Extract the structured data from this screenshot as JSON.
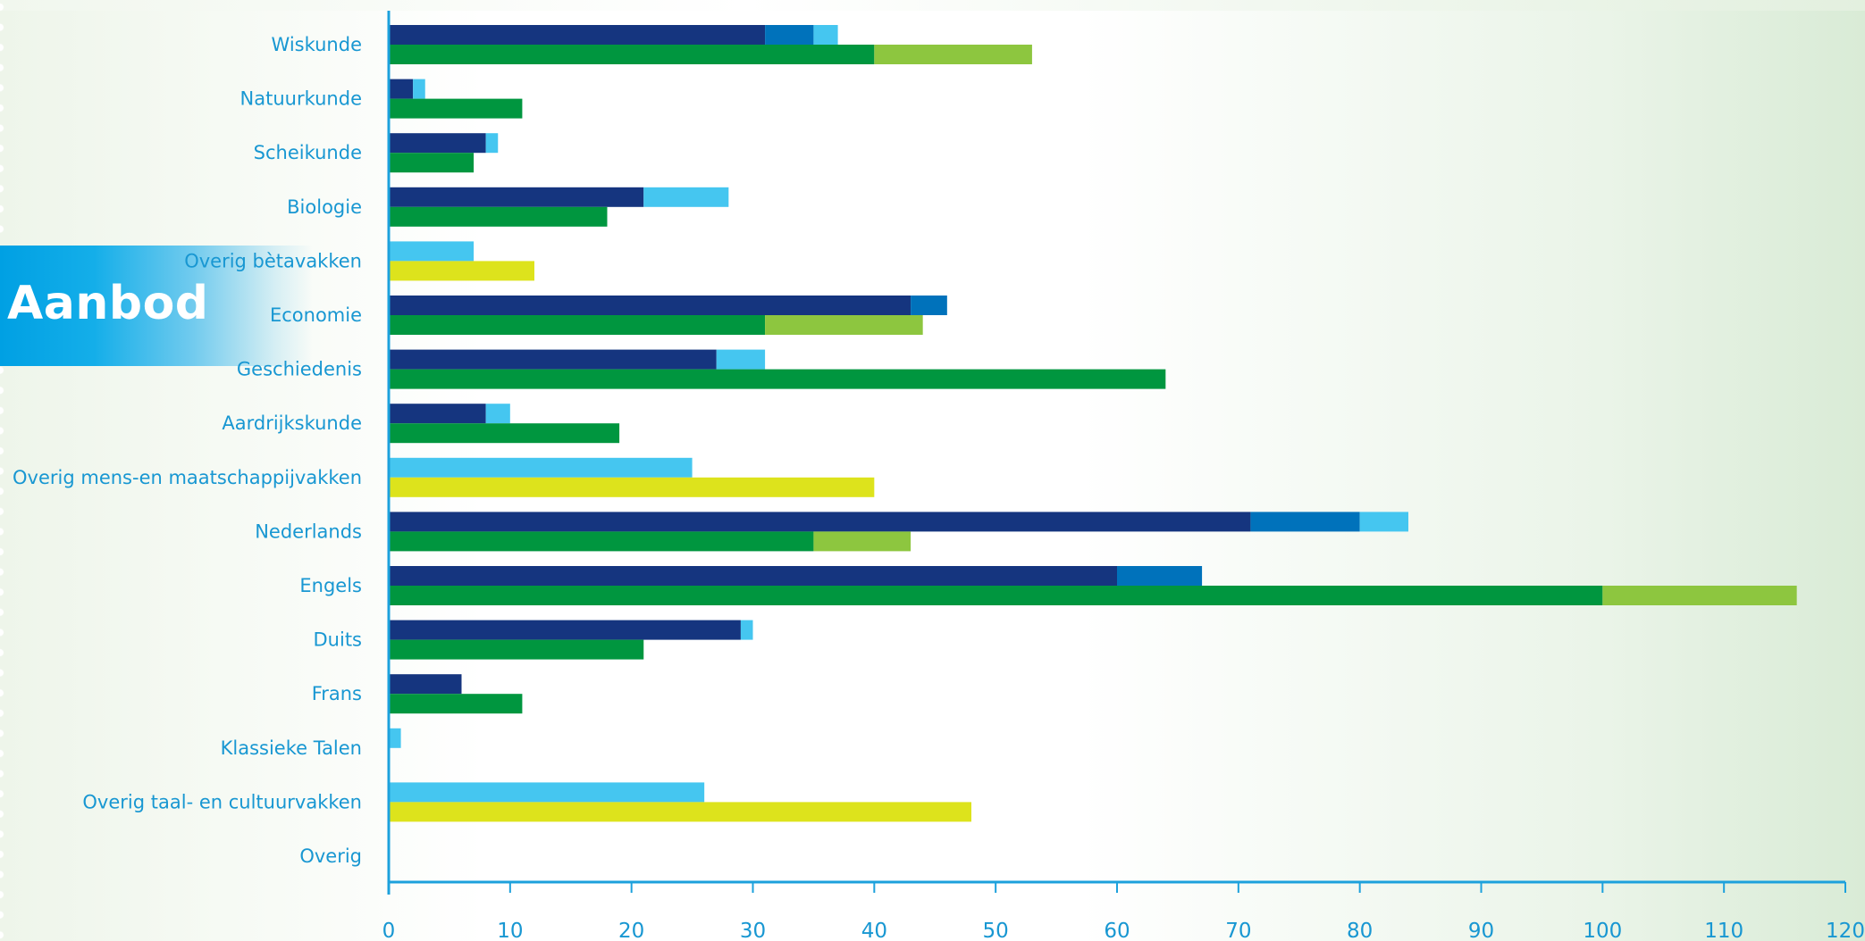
{
  "heading": {
    "title": "Aanbod"
  },
  "chart_data": {
    "type": "bar",
    "orientation": "horizontal",
    "stacked": true,
    "title": "",
    "xlabel": "",
    "ylabel": "",
    "xlim": [
      0,
      120
    ],
    "xticks": [
      0,
      10,
      20,
      30,
      40,
      50,
      60,
      70,
      80,
      90,
      100,
      110,
      120
    ],
    "grid": false,
    "legend": "none",
    "colors": {
      "navy": "#15357f",
      "blue": "#0072bb",
      "lightblue": "#45c6f0",
      "green": "#00963f",
      "lightgreen": "#8dc63f",
      "yellow": "#dde31c",
      "axis": "#1da1dc",
      "label": "#1897d2"
    },
    "categories": [
      "Wiskunde",
      "Natuurkunde",
      "Scheikunde",
      "Biologie",
      "Overig bètavakken",
      "Economie",
      "Geschiedenis",
      "Aardrijkskunde",
      "Overig mens-en maatschappijvakken",
      "Nederlands",
      "Engels",
      "Duits",
      "Frans",
      "Klassieke Talen",
      "Overig taal- en cultuurvakken",
      "Overig"
    ],
    "upper_bars": [
      [
        {
          "value": 31,
          "color": "navy"
        },
        {
          "value": 4,
          "color": "blue"
        },
        {
          "value": 2,
          "color": "lightblue"
        }
      ],
      [
        {
          "value": 2,
          "color": "navy"
        },
        {
          "value": 1,
          "color": "lightblue"
        }
      ],
      [
        {
          "value": 8,
          "color": "navy"
        },
        {
          "value": 1,
          "color": "lightblue"
        }
      ],
      [
        {
          "value": 21,
          "color": "navy"
        },
        {
          "value": 7,
          "color": "lightblue"
        }
      ],
      [
        {
          "value": 7,
          "color": "lightblue"
        }
      ],
      [
        {
          "value": 43,
          "color": "navy"
        },
        {
          "value": 3,
          "color": "blue"
        }
      ],
      [
        {
          "value": 27,
          "color": "navy"
        },
        {
          "value": 4,
          "color": "lightblue"
        }
      ],
      [
        {
          "value": 8,
          "color": "navy"
        },
        {
          "value": 2,
          "color": "lightblue"
        }
      ],
      [
        {
          "value": 25,
          "color": "lightblue"
        }
      ],
      [
        {
          "value": 71,
          "color": "navy"
        },
        {
          "value": 9,
          "color": "blue"
        },
        {
          "value": 4,
          "color": "lightblue"
        }
      ],
      [
        {
          "value": 60,
          "color": "navy"
        },
        {
          "value": 7,
          "color": "blue"
        }
      ],
      [
        {
          "value": 29,
          "color": "navy"
        },
        {
          "value": 1,
          "color": "lightblue"
        }
      ],
      [
        {
          "value": 6,
          "color": "navy"
        }
      ],
      [
        {
          "value": 1,
          "color": "lightblue"
        }
      ],
      [
        {
          "value": 26,
          "color": "lightblue"
        }
      ],
      []
    ],
    "lower_bars": [
      [
        {
          "value": 40,
          "color": "green"
        },
        {
          "value": 13,
          "color": "lightgreen"
        }
      ],
      [
        {
          "value": 11,
          "color": "green"
        }
      ],
      [
        {
          "value": 7,
          "color": "green"
        }
      ],
      [
        {
          "value": 18,
          "color": "green"
        }
      ],
      [
        {
          "value": 12,
          "color": "yellow"
        }
      ],
      [
        {
          "value": 31,
          "color": "green"
        },
        {
          "value": 13,
          "color": "lightgreen"
        }
      ],
      [
        {
          "value": 64,
          "color": "green"
        }
      ],
      [
        {
          "value": 19,
          "color": "green"
        }
      ],
      [
        {
          "value": 40,
          "color": "yellow"
        }
      ],
      [
        {
          "value": 35,
          "color": "green"
        },
        {
          "value": 8,
          "color": "lightgreen"
        }
      ],
      [
        {
          "value": 100,
          "color": "green"
        },
        {
          "value": 16,
          "color": "lightgreen"
        }
      ],
      [
        {
          "value": 21,
          "color": "green"
        }
      ],
      [
        {
          "value": 11,
          "color": "green"
        }
      ],
      [],
      [
        {
          "value": 48,
          "color": "yellow"
        }
      ],
      []
    ]
  }
}
